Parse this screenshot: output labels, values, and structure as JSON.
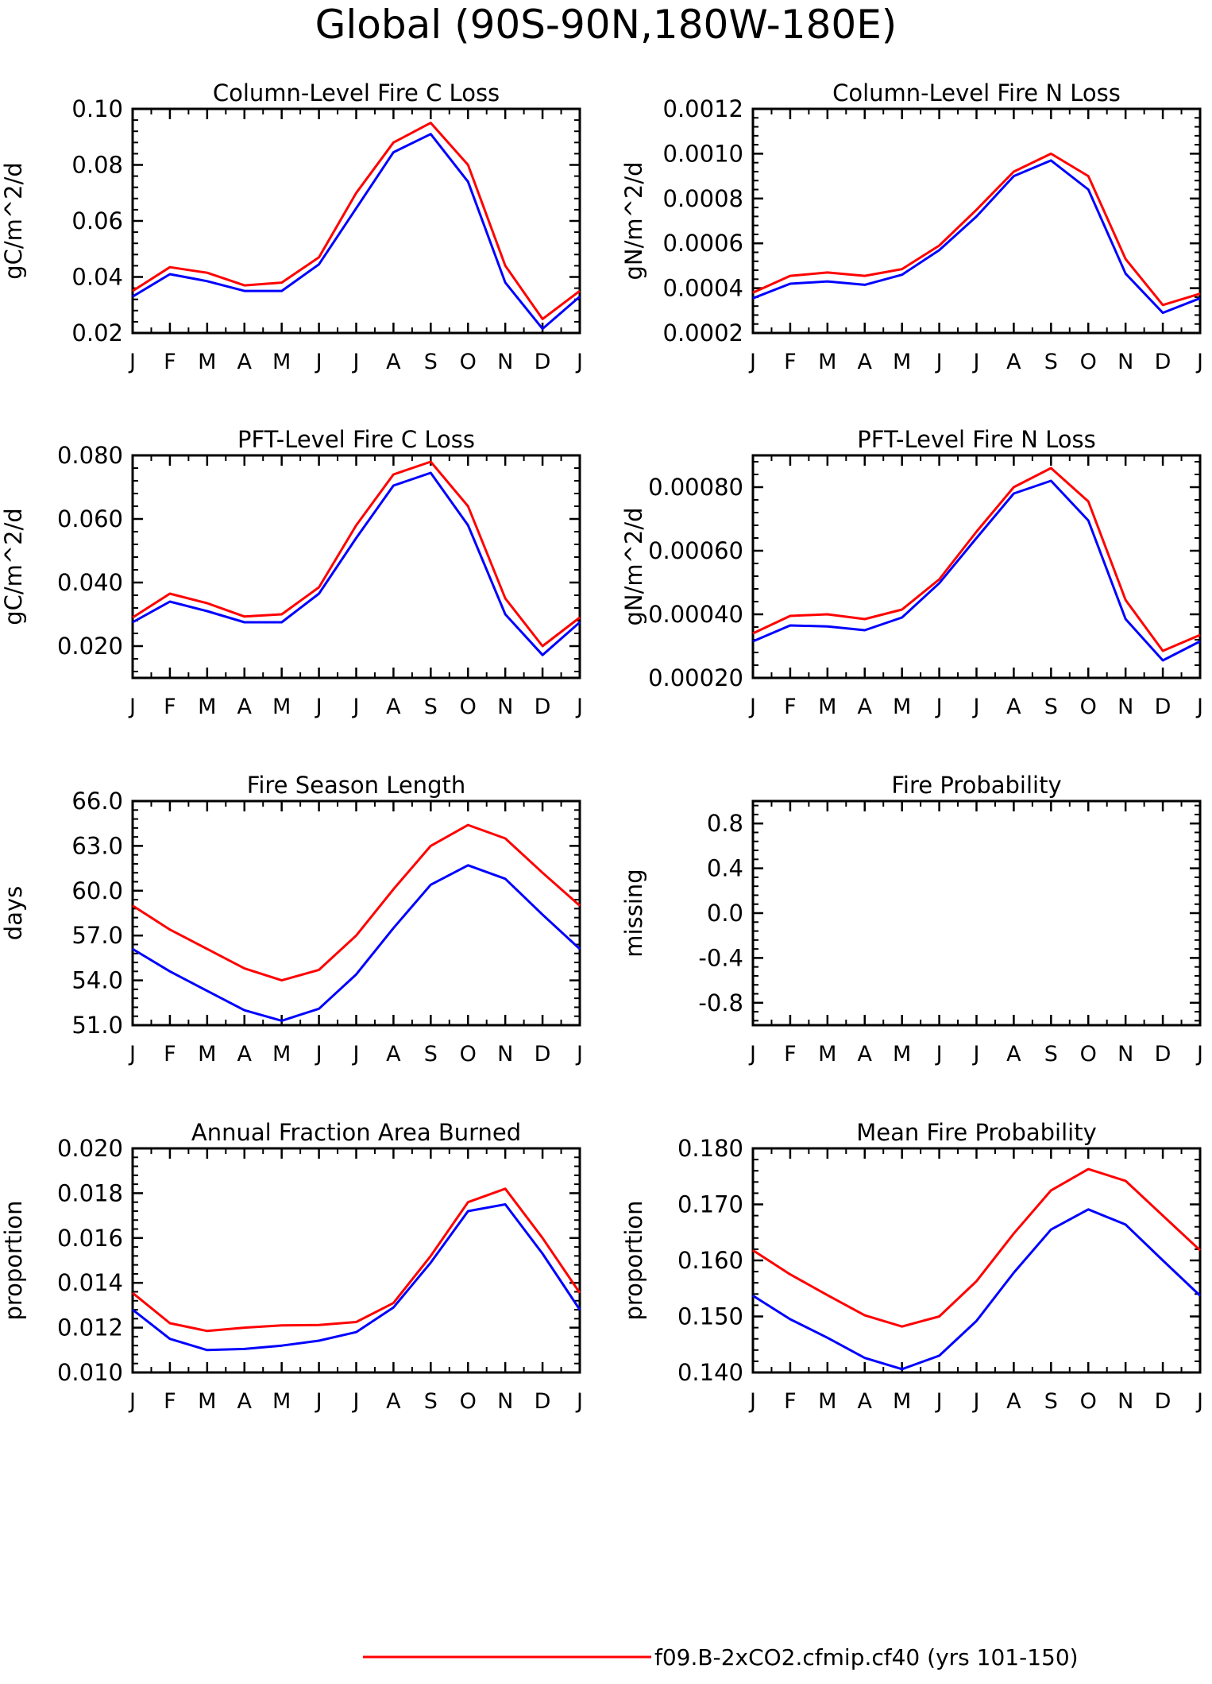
{
  "figure": {
    "title": "Global (90S-90N,180W-180E)",
    "legend": [
      {
        "label": "f09.B-2xCO2.cfmip.cf40 (yrs 101-150)",
        "color": "#ff0000"
      }
    ]
  },
  "colors": {
    "series_a": "#ff0000",
    "series_b": "#0000ff"
  },
  "chart_data": [
    {
      "type": "line",
      "title": "Column-Level Fire C Loss",
      "ylabel": "gC/m^2/d",
      "categories": [
        "J",
        "F",
        "M",
        "A",
        "M",
        "J",
        "J",
        "A",
        "S",
        "O",
        "N",
        "D",
        "J"
      ],
      "yticks": [
        "0.02",
        "0.04",
        "0.06",
        "0.08",
        "0.10"
      ],
      "ylim": [
        0.02,
        0.1
      ],
      "series": [
        {
          "color": "#ff0000",
          "values": [
            0.035,
            0.0435,
            0.0415,
            0.037,
            0.038,
            0.047,
            0.07,
            0.088,
            0.095,
            0.08,
            0.044,
            0.025,
            0.035
          ]
        },
        {
          "color": "#0000ff",
          "values": [
            0.033,
            0.041,
            0.0385,
            0.035,
            0.035,
            0.0445,
            0.0645,
            0.0845,
            0.091,
            0.074,
            0.038,
            0.0215,
            0.033
          ]
        }
      ]
    },
    {
      "type": "line",
      "title": "Column-Level Fire N Loss",
      "ylabel": "gN/m^2/d",
      "categories": [
        "J",
        "F",
        "M",
        "A",
        "M",
        "J",
        "J",
        "A",
        "S",
        "O",
        "N",
        "D",
        "J"
      ],
      "yticks": [
        "0.0002",
        "0.0004",
        "0.0006",
        "0.0008",
        "0.0010",
        "0.0012"
      ],
      "ylim": [
        0.0002,
        0.0012
      ],
      "series": [
        {
          "color": "#ff0000",
          "values": [
            0.00038,
            0.000455,
            0.00047,
            0.000455,
            0.000485,
            0.00059,
            0.00075,
            0.00092,
            0.001,
            0.0009,
            0.00053,
            0.000325,
            0.000375
          ]
        },
        {
          "color": "#0000ff",
          "values": [
            0.000355,
            0.00042,
            0.00043,
            0.000415,
            0.00046,
            0.00057,
            0.00072,
            0.0009,
            0.00097,
            0.00084,
            0.000465,
            0.00029,
            0.000355
          ]
        }
      ]
    },
    {
      "type": "line",
      "title": "PFT-Level Fire C Loss",
      "ylabel": "gC/m^2/d",
      "categories": [
        "J",
        "F",
        "M",
        "A",
        "M",
        "J",
        "J",
        "A",
        "S",
        "O",
        "N",
        "D",
        "J"
      ],
      "yticks": [
        "0.020",
        "0.040",
        "0.060",
        "0.080"
      ],
      "ylim": [
        0.01,
        0.08
      ],
      "series": [
        {
          "color": "#ff0000",
          "values": [
            0.029,
            0.0365,
            0.0335,
            0.0293,
            0.03,
            0.0385,
            0.058,
            0.074,
            0.078,
            0.064,
            0.035,
            0.02,
            0.029
          ]
        },
        {
          "color": "#0000ff",
          "values": [
            0.0275,
            0.034,
            0.031,
            0.0275,
            0.0275,
            0.0365,
            0.054,
            0.0705,
            0.0745,
            0.058,
            0.03,
            0.0172,
            0.0275
          ]
        }
      ]
    },
    {
      "type": "line",
      "title": "PFT-Level Fire N Loss",
      "ylabel": "gN/m^2/d",
      "categories": [
        "J",
        "F",
        "M",
        "A",
        "M",
        "J",
        "J",
        "A",
        "S",
        "O",
        "N",
        "D",
        "J"
      ],
      "yticks": [
        "0.00020",
        "0.00040",
        "0.00060",
        "0.00080"
      ],
      "ylim": [
        0.0002,
        0.0009
      ],
      "series": [
        {
          "color": "#ff0000",
          "values": [
            0.00034,
            0.000395,
            0.0004,
            0.000385,
            0.000415,
            0.00051,
            0.00066,
            0.0008,
            0.00086,
            0.000755,
            0.000445,
            0.000285,
            0.000335
          ]
        },
        {
          "color": "#0000ff",
          "values": [
            0.000315,
            0.000365,
            0.000362,
            0.00035,
            0.00039,
            0.000498,
            0.00064,
            0.00078,
            0.00082,
            0.000695,
            0.000385,
            0.000255,
            0.000315
          ]
        }
      ]
    },
    {
      "type": "line",
      "title": "Fire Season Length",
      "ylabel": "days",
      "categories": [
        "J",
        "F",
        "M",
        "A",
        "M",
        "J",
        "J",
        "A",
        "S",
        "O",
        "N",
        "D",
        "J"
      ],
      "yticks": [
        "51.0",
        "54.0",
        "57.0",
        "60.0",
        "63.0",
        "66.0"
      ],
      "ylim": [
        51.0,
        66.0
      ],
      "series": [
        {
          "color": "#ff0000",
          "values": [
            59.0,
            57.4,
            56.1,
            54.8,
            54.0,
            54.7,
            57.0,
            60.1,
            63.0,
            64.4,
            63.5,
            61.2,
            59.0
          ]
        },
        {
          "color": "#0000ff",
          "values": [
            56.1,
            54.6,
            53.3,
            52.0,
            51.3,
            52.1,
            54.4,
            57.5,
            60.4,
            61.7,
            60.8,
            58.4,
            56.1
          ]
        }
      ]
    },
    {
      "type": "line",
      "title": "Fire Probability",
      "ylabel": "missing",
      "categories": [
        "J",
        "F",
        "M",
        "A",
        "M",
        "J",
        "J",
        "A",
        "S",
        "O",
        "N",
        "D",
        "J"
      ],
      "yticks": [
        "-0.8",
        "-0.4",
        "0.0",
        "0.4",
        "0.8"
      ],
      "ylim": [
        -1.0,
        1.0
      ],
      "series": []
    },
    {
      "type": "line",
      "title": "Annual Fraction Area Burned",
      "ylabel": "proportion",
      "categories": [
        "J",
        "F",
        "M",
        "A",
        "M",
        "J",
        "J",
        "A",
        "S",
        "O",
        "N",
        "D",
        "J"
      ],
      "yticks": [
        "0.010",
        "0.012",
        "0.014",
        "0.016",
        "0.018",
        "0.020"
      ],
      "ylim": [
        0.01,
        0.02
      ],
      "series": [
        {
          "color": "#ff0000",
          "values": [
            0.01355,
            0.0122,
            0.01185,
            0.012,
            0.0121,
            0.01212,
            0.01225,
            0.0131,
            0.0152,
            0.0176,
            0.0182,
            0.016,
            0.01355
          ]
        },
        {
          "color": "#0000ff",
          "values": [
            0.0128,
            0.0115,
            0.011,
            0.01105,
            0.0112,
            0.01142,
            0.0118,
            0.0129,
            0.0149,
            0.0172,
            0.0175,
            0.0153,
            0.0128
          ]
        }
      ]
    },
    {
      "type": "line",
      "title": "Mean Fire Probability",
      "ylabel": "proportion",
      "categories": [
        "J",
        "F",
        "M",
        "A",
        "M",
        "J",
        "J",
        "A",
        "S",
        "O",
        "N",
        "D",
        "J"
      ],
      "yticks": [
        "0.140",
        "0.150",
        "0.160",
        "0.170",
        "0.180"
      ],
      "ylim": [
        0.14,
        0.18
      ],
      "series": [
        {
          "color": "#ff0000",
          "values": [
            0.1618,
            0.1575,
            0.1538,
            0.1502,
            0.1482,
            0.15,
            0.1563,
            0.1648,
            0.1725,
            0.1763,
            0.1742,
            0.168,
            0.1618
          ]
        },
        {
          "color": "#0000ff",
          "values": [
            0.1537,
            0.1495,
            0.1462,
            0.1426,
            0.1406,
            0.143,
            0.1492,
            0.1578,
            0.1655,
            0.1691,
            0.1664,
            0.16,
            0.1537
          ]
        }
      ]
    }
  ]
}
